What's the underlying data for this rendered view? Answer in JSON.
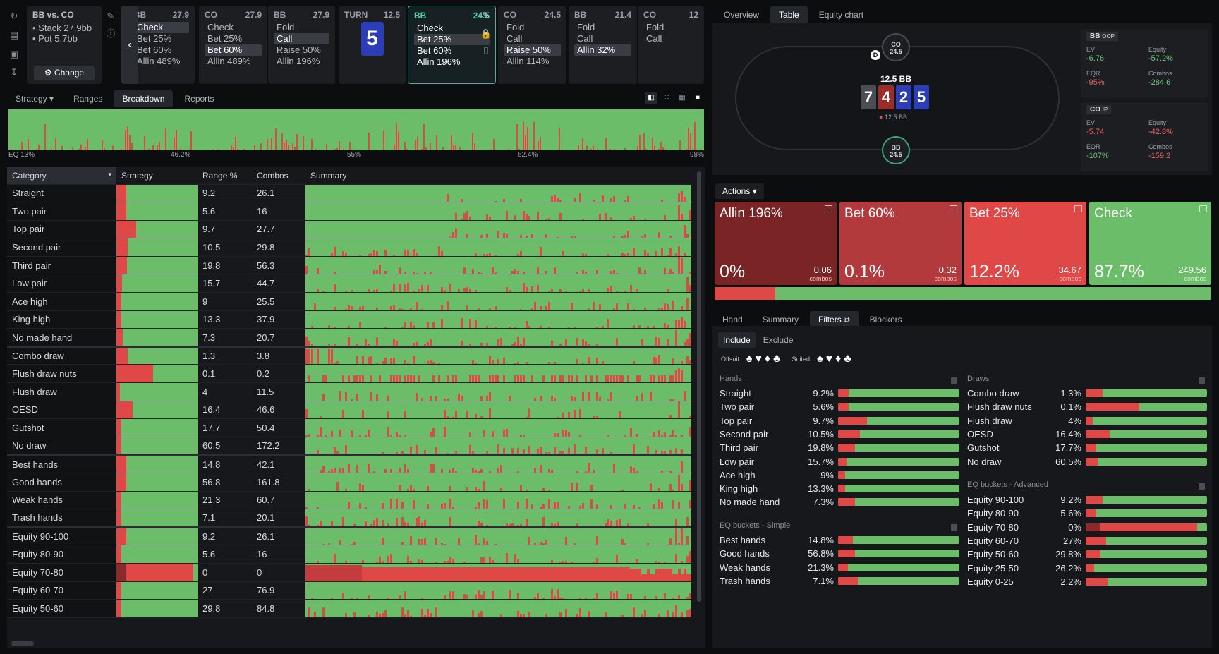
{
  "left_icons": [
    "refresh-icon",
    "save-icon",
    "gamepad-icon",
    "align-icon"
  ],
  "game": {
    "title": "BB vs. CO",
    "stack": "Stack 27.9bb",
    "pot": "Pot 5.7bb",
    "change_label": "Change"
  },
  "spots": [
    {
      "pos": "BB",
      "stack": "27.9",
      "actions": [
        "Check",
        "Bet 25%",
        "Bet 60%",
        "Allin 489%"
      ],
      "sel": 0
    },
    {
      "pos": "CO",
      "stack": "27.9",
      "actions": [
        "Check",
        "Bet 25%",
        "Bet 60%",
        "Allin 489%"
      ],
      "sel": 2
    },
    {
      "pos": "BB",
      "stack": "27.9",
      "actions": [
        "Fold",
        "Call",
        "Raise 50%",
        "Allin 196%"
      ],
      "sel": 1
    },
    {
      "pos": "BB",
      "stack": "24.5",
      "actions": [
        "Check",
        "Bet 25%",
        "Bet 60%",
        "Allin 196%"
      ],
      "sel": -1
    },
    {
      "pos": "CO",
      "stack": "24.5",
      "actions": [
        "Fold",
        "Call",
        "Raise 50%",
        "Allin 114%"
      ],
      "sel": 2
    },
    {
      "pos": "BB",
      "stack": "21.4",
      "actions": [
        "Fold",
        "Call",
        "Allin 32%"
      ],
      "sel": 2
    },
    {
      "pos": "CO",
      "stack": "12",
      "actions": [
        "Fold",
        "Call"
      ],
      "sel": -1
    }
  ],
  "turn": {
    "label": "TURN",
    "pot": "12.5",
    "card": "5"
  },
  "left_tabs": [
    "Strategy",
    "Ranges",
    "Breakdown",
    "Reports"
  ],
  "eq_axis": [
    "EQ 13%",
    "46.2%",
    "55%",
    "62.4%",
    "98%"
  ],
  "table_headers": [
    "Category",
    "Strategy",
    "Range %",
    "Combos",
    "Summary"
  ],
  "rows": [
    {
      "name": "Straight",
      "strat": 0.12,
      "range": "9.2",
      "combos": "26.1"
    },
    {
      "name": "Two pair",
      "strat": 0.12,
      "range": "5.6",
      "combos": "16"
    },
    {
      "name": "Top pair",
      "strat": 0.24,
      "range": "9.7",
      "combos": "27.7"
    },
    {
      "name": "Second pair",
      "strat": 0.14,
      "range": "10.5",
      "combos": "29.8"
    },
    {
      "name": "Third pair",
      "strat": 0.13,
      "range": "19.8",
      "combos": "56.3"
    },
    {
      "name": "Low pair",
      "strat": 0.07,
      "range": "15.7",
      "combos": "44.7"
    },
    {
      "name": "Ace high",
      "strat": 0.06,
      "range": "9",
      "combos": "25.5"
    },
    {
      "name": "King high",
      "strat": 0.06,
      "range": "13.3",
      "combos": "37.9"
    },
    {
      "name": "No made hand",
      "strat": 0.08,
      "range": "7.3",
      "combos": "20.7"
    },
    {
      "name": "Combo draw",
      "strat": 0.14,
      "range": "1.3",
      "combos": "3.8",
      "sep": true
    },
    {
      "name": "Flush draw nuts",
      "strat": 0.45,
      "range": "0.1",
      "combos": "0.2"
    },
    {
      "name": "Flush draw",
      "strat": 0.04,
      "range": "4",
      "combos": "11.5"
    },
    {
      "name": "OESD",
      "strat": 0.2,
      "range": "16.4",
      "combos": "46.6"
    },
    {
      "name": "Gutshot",
      "strat": 0.06,
      "range": "17.7",
      "combos": "50.4"
    },
    {
      "name": "No draw",
      "strat": 0.06,
      "range": "60.5",
      "combos": "172.2"
    },
    {
      "name": "Best hands",
      "strat": 0.12,
      "range": "14.8",
      "combos": "42.1",
      "sep": true
    },
    {
      "name": "Good hands",
      "strat": 0.12,
      "range": "56.8",
      "combos": "161.8"
    },
    {
      "name": "Weak hands",
      "strat": 0.06,
      "range": "21.3",
      "combos": "60.7"
    },
    {
      "name": "Trash hands",
      "strat": 0.06,
      "range": "7.1",
      "combos": "20.1"
    },
    {
      "name": "Equity 90-100",
      "strat": 0.12,
      "range": "9.2",
      "combos": "26.1",
      "sep": true
    },
    {
      "name": "Equity 80-90",
      "strat": 0.06,
      "range": "5.6",
      "combos": "16"
    },
    {
      "name": "Equity 70-80",
      "strat": 0.95,
      "range": "0",
      "combos": "0"
    },
    {
      "name": "Equity 60-70",
      "strat": 0.06,
      "range": "27",
      "combos": "76.9"
    },
    {
      "name": "Equity 50-60",
      "strat": 0.06,
      "range": "29.8",
      "combos": "84.8"
    }
  ],
  "right_tabs": [
    "Overview",
    "Table",
    "Equity chart"
  ],
  "table_view": {
    "pot": "12.5 BB",
    "pot_small": "12.5 BB",
    "board": [
      "7",
      "4",
      "2",
      "5"
    ],
    "co_seat": {
      "pos": "CO",
      "stack": "24.5"
    },
    "bb_seat": {
      "pos": "BB",
      "stack": "24.5"
    },
    "dealer": "D"
  },
  "stats": {
    "bb_head": "BB",
    "bb_tag": "OOP",
    "co_head": "CO",
    "co_tag": "IP",
    "bb": [
      {
        "k": "EV",
        "v": "-6.76",
        "c": "g"
      },
      {
        "k": "Equity",
        "v": "-57.2%",
        "c": "g"
      },
      {
        "k": "EQR",
        "v": "-95%",
        "c": "r"
      },
      {
        "k": "Combos",
        "v": "-284.6",
        "c": "g"
      }
    ],
    "co": [
      {
        "k": "EV",
        "v": "-5.74",
        "c": "r"
      },
      {
        "k": "Equity",
        "v": "-42.8%",
        "c": "r"
      },
      {
        "k": "EQR",
        "v": "-107%",
        "c": "g"
      },
      {
        "k": "Combos",
        "v": "-159.2",
        "c": "r"
      }
    ]
  },
  "actions_label": "Actions",
  "actions": [
    {
      "label": "Allin 196%",
      "pct": "0%",
      "combos": "0.06",
      "unit": "combos",
      "color": "#7a2426"
    },
    {
      "label": "Bet 60%",
      "pct": "0.1%",
      "combos": "0.32",
      "unit": "combos",
      "color": "#b23a3c"
    },
    {
      "label": "Bet 25%",
      "pct": "12.2%",
      "combos": "34.67",
      "unit": "combos",
      "color": "#e04848"
    },
    {
      "label": "Check",
      "pct": "87.7%",
      "combos": "249.56",
      "unit": "combos",
      "color": "#6cbd6a"
    }
  ],
  "action_bar": {
    "red_fraction": 0.122
  },
  "bottom_tabs": [
    "Hand",
    "Summary",
    "Filters",
    "Blockers"
  ],
  "filter_tabs": [
    "Include",
    "Exclude"
  ],
  "suits": {
    "offsuit": "Offsuit",
    "suited": "Suited"
  },
  "hands_title": "Hands",
  "draws_title": "Draws",
  "eq_simple_title": "EQ buckets - Simple",
  "eq_adv_title": "EQ buckets - Advanced",
  "hands": [
    {
      "n": "Straight",
      "v": "9.2%",
      "f": 0.09
    },
    {
      "n": "Two pair",
      "v": "5.6%",
      "f": 0.09
    },
    {
      "n": "Top pair",
      "v": "9.7%",
      "f": 0.24
    },
    {
      "n": "Second pair",
      "v": "10.5%",
      "f": 0.18
    },
    {
      "n": "Third pair",
      "v": "19.8%",
      "f": 0.14
    },
    {
      "n": "Low pair",
      "v": "15.7%",
      "f": 0.07
    },
    {
      "n": "Ace high",
      "v": "9%",
      "f": 0.06
    },
    {
      "n": "King high",
      "v": "13.3%",
      "f": 0.06
    },
    {
      "n": "No made hand",
      "v": "7.3%",
      "f": 0.14
    }
  ],
  "draws": [
    {
      "n": "Combo draw",
      "v": "1.3%",
      "f": 0.14
    },
    {
      "n": "Flush draw nuts",
      "v": "0.1%",
      "f": 0.44
    },
    {
      "n": "Flush draw",
      "v": "4%",
      "f": 0.06
    },
    {
      "n": "OESD",
      "v": "16.4%",
      "f": 0.2
    },
    {
      "n": "Gutshot",
      "v": "17.7%",
      "f": 0.09
    },
    {
      "n": "No draw",
      "v": "60.5%",
      "f": 0.1
    }
  ],
  "eq_simple": [
    {
      "n": "Best hands",
      "v": "14.8%",
      "f": 0.12
    },
    {
      "n": "Good hands",
      "v": "56.8%",
      "f": 0.14
    },
    {
      "n": "Weak hands",
      "v": "21.3%",
      "f": 0.08
    },
    {
      "n": "Trash hands",
      "v": "7.1%",
      "f": 0.16
    }
  ],
  "eq_adv": [
    {
      "n": "Equity 90-100",
      "v": "9.2%",
      "f": 0.14
    },
    {
      "n": "Equity 80-90",
      "v": "5.6%",
      "f": 0.09
    },
    {
      "n": "Equity 70-80",
      "v": "0%",
      "f": 0.92
    },
    {
      "n": "Equity 60-70",
      "v": "27%",
      "f": 0.17
    },
    {
      "n": "Equity 50-60",
      "v": "29.8%",
      "f": 0.12
    },
    {
      "n": "Equity 25-50",
      "v": "26.2%",
      "f": 0.07
    },
    {
      "n": "Equity 0-25",
      "v": "2.2%",
      "f": 0.18
    }
  ]
}
